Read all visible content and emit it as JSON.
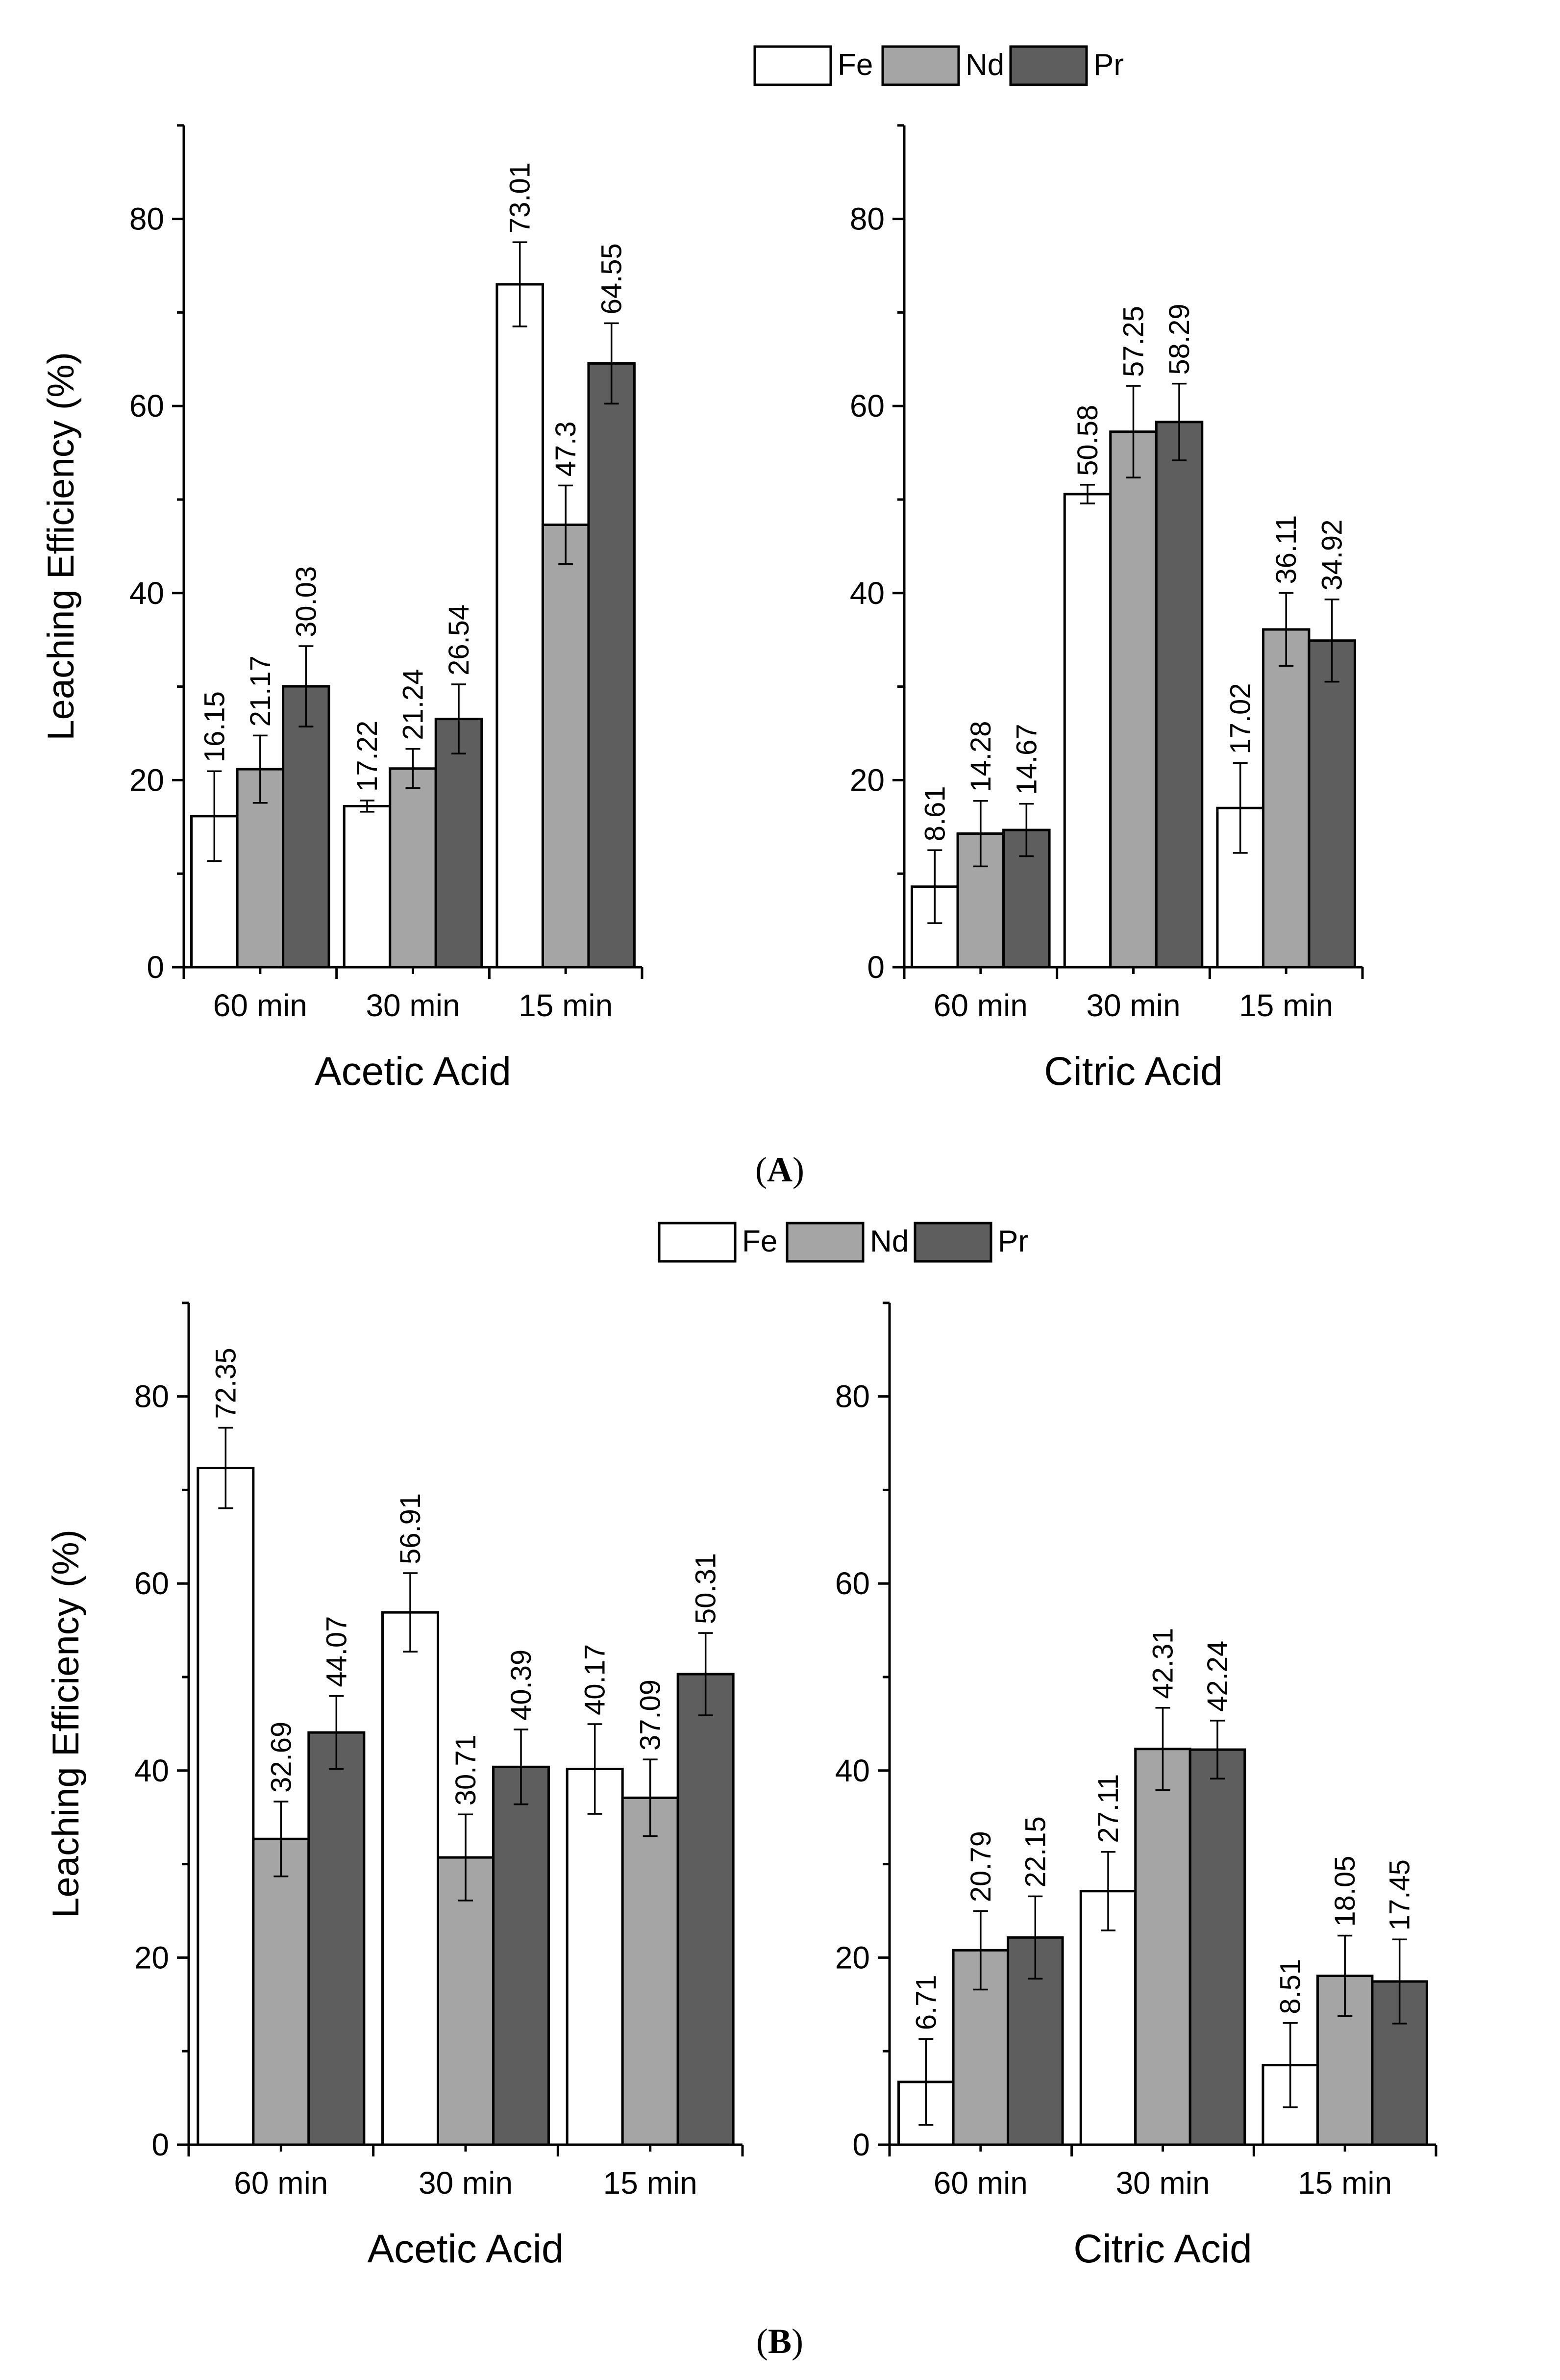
{
  "colors": {
    "Fe": "#ffffff",
    "Nd": "#a5a5a5",
    "Pr": "#5e5e5e"
  },
  "y_axis_title": "Leaching Efficiency (%)",
  "chart_data": [
    {
      "type": "bar",
      "panel": "A",
      "side": "left",
      "title": "",
      "xlabel": "Acetic Acid",
      "ylabel": "Leaching Efficiency (%)",
      "ylim": [
        0,
        90
      ],
      "yticks": [
        0,
        20,
        40,
        60,
        80
      ],
      "categories": [
        "60 min",
        "30 min",
        "15 min"
      ],
      "legend": {
        "position": "top-center",
        "entries": [
          "Fe",
          "Nd",
          "Pr"
        ]
      },
      "series": [
        {
          "name": "Fe",
          "values": [
            16.15,
            17.22,
            73.01
          ],
          "labels": [
            "16.15",
            "17.22",
            "73.01"
          ],
          "errors": [
            4.8,
            0.6,
            4.5
          ]
        },
        {
          "name": "Nd",
          "values": [
            21.17,
            21.24,
            47.3
          ],
          "labels": [
            "21.17",
            "21.24",
            "47.3"
          ],
          "errors": [
            3.6,
            2.1,
            4.2
          ]
        },
        {
          "name": "Pr",
          "values": [
            30.03,
            26.54,
            64.55
          ],
          "labels": [
            "30.03",
            "26.54",
            "64.55"
          ],
          "errors": [
            4.3,
            3.7,
            4.3
          ]
        }
      ]
    },
    {
      "type": "bar",
      "panel": "A",
      "side": "right",
      "title": "",
      "xlabel": "Citric Acid",
      "ylabel": "",
      "ylim": [
        0,
        90
      ],
      "yticks": [
        0,
        20,
        40,
        60,
        80
      ],
      "categories": [
        "60 min",
        "30 min",
        "15 min"
      ],
      "series": [
        {
          "name": "Fe",
          "values": [
            8.61,
            50.58,
            17.02
          ],
          "labels": [
            "8.61",
            "50.58",
            "17.02"
          ],
          "errors": [
            3.9,
            1.0,
            4.8
          ]
        },
        {
          "name": "Nd",
          "values": [
            14.28,
            57.25,
            36.11
          ],
          "labels": [
            "14.28",
            "57.25",
            "36.11"
          ],
          "errors": [
            3.5,
            4.9,
            3.9
          ]
        },
        {
          "name": "Pr",
          "values": [
            14.67,
            58.29,
            34.92
          ],
          "labels": [
            "14.67",
            "58.29",
            "34.92"
          ],
          "errors": [
            2.8,
            4.1,
            4.4
          ]
        }
      ]
    },
    {
      "type": "bar",
      "panel": "B",
      "side": "left",
      "title": "",
      "xlabel": "Acetic Acid",
      "ylabel": "Leaching Efficiency (%)",
      "ylim": [
        0,
        90
      ],
      "yticks": [
        0,
        20,
        40,
        60,
        80
      ],
      "categories": [
        "60 min",
        "30 min",
        "15 min"
      ],
      "legend": {
        "position": "top-center",
        "entries": [
          "Fe",
          "Nd",
          "Pr"
        ]
      },
      "series": [
        {
          "name": "Fe",
          "values": [
            72.35,
            56.91,
            40.17
          ],
          "labels": [
            "72.35",
            "56.91",
            "40.17"
          ],
          "errors": [
            4.3,
            4.2,
            4.8
          ]
        },
        {
          "name": "Nd",
          "values": [
            32.69,
            30.71,
            37.09
          ],
          "labels": [
            "32.69",
            "30.71",
            "37.09"
          ],
          "errors": [
            4.0,
            4.6,
            4.1
          ]
        },
        {
          "name": "Pr",
          "values": [
            44.07,
            40.39,
            50.31
          ],
          "labels": [
            "44.07",
            "40.39",
            "50.31"
          ],
          "errors": [
            3.9,
            4.0,
            4.4
          ]
        }
      ]
    },
    {
      "type": "bar",
      "panel": "B",
      "side": "right",
      "title": "",
      "xlabel": "Citric Acid",
      "ylabel": "",
      "ylim": [
        0,
        90
      ],
      "yticks": [
        0,
        20,
        40,
        60,
        80
      ],
      "categories": [
        "60 min",
        "30 min",
        "15 min"
      ],
      "series": [
        {
          "name": "Fe",
          "values": [
            6.71,
            27.11,
            8.51
          ],
          "labels": [
            "6.71",
            "27.11",
            "8.51"
          ],
          "errors": [
            4.6,
            4.2,
            4.5
          ]
        },
        {
          "name": "Nd",
          "values": [
            20.79,
            42.31,
            18.05
          ],
          "labels": [
            "20.79",
            "42.31",
            "18.05"
          ],
          "errors": [
            4.2,
            4.4,
            4.3
          ]
        },
        {
          "name": "Pr",
          "values": [
            22.15,
            42.24,
            17.45
          ],
          "labels": [
            "22.15",
            "42.24",
            "17.45"
          ],
          "errors": [
            4.4,
            3.1,
            4.5
          ]
        }
      ]
    }
  ],
  "panels": [
    {
      "id": "A",
      "label_open": "(",
      "label_letter": "A",
      "label_close": ")"
    },
    {
      "id": "B",
      "label_open": "(",
      "label_letter": "B",
      "label_close": ")"
    }
  ]
}
